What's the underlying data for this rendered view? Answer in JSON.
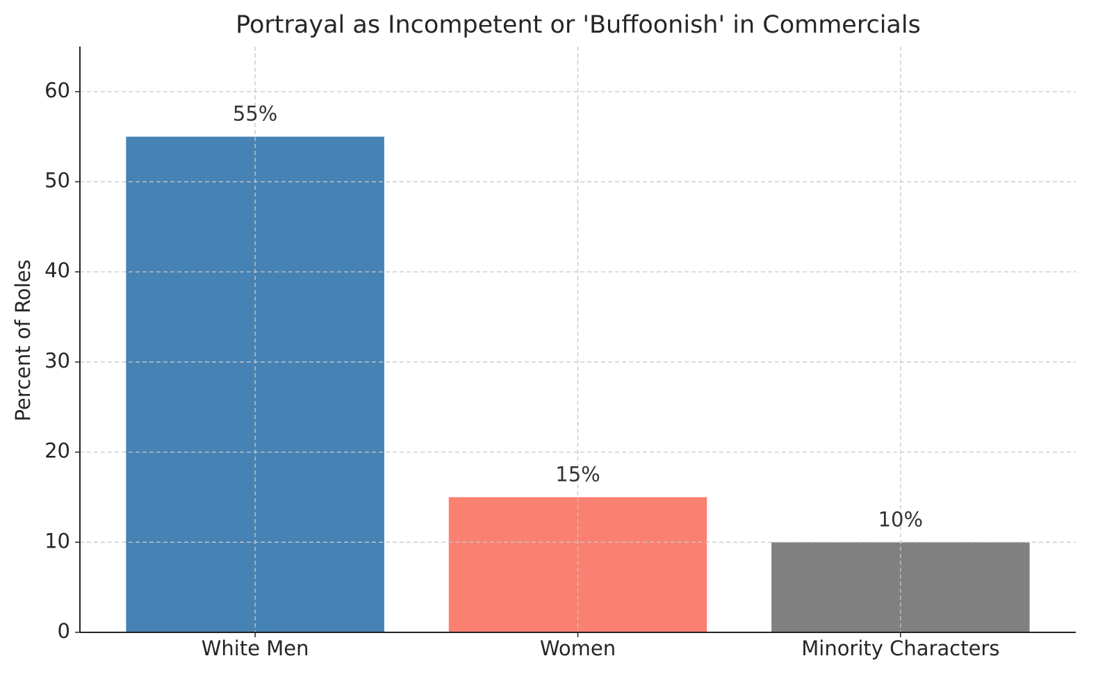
{
  "chart_data": {
    "type": "bar",
    "title": "Portrayal as Incompetent or 'Buffoonish' in Commercials",
    "y_label": "Percent of Roles",
    "categories": [
      "White Men",
      "Women",
      "Minority Characters"
    ],
    "values": [
      55,
      15,
      10
    ],
    "value_labels": [
      "55%",
      "15%",
      "10%"
    ],
    "colors": [
      "#4682b4",
      "#fa8072",
      "#808080"
    ],
    "ylim": [
      0,
      65
    ],
    "yticks": [
      0,
      10,
      20,
      30,
      40,
      50,
      60
    ],
    "grid": true
  }
}
